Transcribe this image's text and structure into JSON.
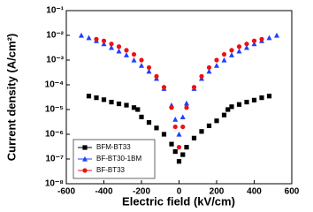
{
  "chart_data": {
    "type": "scatter",
    "xlabel": "Electric field (kV/cm)",
    "ylabel": "Current density (A/cm²)",
    "xlim": [
      -600,
      600
    ],
    "xticks": [
      -600,
      -400,
      -200,
      0,
      200,
      400,
      600
    ],
    "ylim": [
      1e-08,
      0.1
    ],
    "ylog": true,
    "yticks": [
      {
        "value": 1e-08,
        "label": "10⁻⁸"
      },
      {
        "value": 1e-07,
        "label": "10⁻⁷"
      },
      {
        "value": 1e-06,
        "label": "10⁻⁶"
      },
      {
        "value": 1e-05,
        "label": "10⁻⁵"
      },
      {
        "value": 0.0001,
        "label": "10⁻⁴"
      },
      {
        "value": 0.001,
        "label": "10⁻³"
      },
      {
        "value": 0.01,
        "label": "10⁻²"
      },
      {
        "value": 0.1,
        "label": "10⁻¹"
      }
    ],
    "legend": "lower left",
    "series": [
      {
        "name": "BFM-BT33",
        "color": "#000000",
        "marker": "square",
        "x": [
          -480,
          -440,
          -400,
          -360,
          -320,
          -280,
          -240,
          -220,
          -200,
          -160,
          -120,
          -80,
          -40,
          -20,
          0,
          20,
          40,
          80,
          120,
          160,
          200,
          240,
          260,
          280,
          320,
          360,
          400,
          440,
          480
        ],
        "values": [
          3.5e-05,
          3e-05,
          2.5e-05,
          2e-05,
          1.7e-05,
          1.5e-05,
          1.2e-05,
          1e-05,
          5e-06,
          3e-06,
          1.8e-06,
          1e-06,
          4e-07,
          2e-07,
          8e-08,
          1.5e-07,
          3e-07,
          7e-07,
          1.3e-06,
          2.2e-06,
          3.5e-06,
          6e-06,
          1e-05,
          1.3e-05,
          1.6e-05,
          2e-05,
          2.4e-05,
          3e-05,
          3.5e-05
        ]
      },
      {
        "name": "BF-BT30-1BM",
        "color": "#1f3fff",
        "marker": "triangle",
        "x": [
          -520,
          -480,
          -440,
          -400,
          -360,
          -320,
          -280,
          -240,
          -200,
          -160,
          -120,
          -80,
          -40,
          -20,
          0,
          20,
          40,
          80,
          120,
          160,
          200,
          240,
          280,
          320,
          360,
          400,
          440,
          480,
          520
        ],
        "values": [
          0.01,
          0.008,
          0.006,
          0.0045,
          0.0032,
          0.0023,
          0.0016,
          0.001,
          0.0006,
          0.00035,
          0.00018,
          7e-05,
          1.5e-05,
          4e-06,
          1e-06,
          5e-06,
          1.8e-05,
          7e-05,
          0.00018,
          0.00035,
          0.0006,
          0.001,
          0.0016,
          0.0023,
          0.0032,
          0.0045,
          0.006,
          0.008,
          0.01
        ]
      },
      {
        "name": "BF-BT33",
        "color": "#ee1111",
        "marker": "circle",
        "x": [
          -440,
          -400,
          -360,
          -320,
          -280,
          -240,
          -200,
          -160,
          -120,
          -80,
          -40,
          -20,
          0,
          20,
          40,
          80,
          120,
          160,
          200,
          240,
          280,
          320,
          360,
          400,
          440
        ],
        "values": [
          0.007,
          0.006,
          0.0045,
          0.0035,
          0.0025,
          0.0017,
          0.001,
          0.0005,
          0.00022,
          8e-05,
          1.2e-05,
          2e-06,
          3e-07,
          2e-06,
          1.2e-05,
          8e-05,
          0.00022,
          0.0005,
          0.001,
          0.0017,
          0.0025,
          0.0035,
          0.0045,
          0.006,
          0.007
        ]
      }
    ]
  }
}
